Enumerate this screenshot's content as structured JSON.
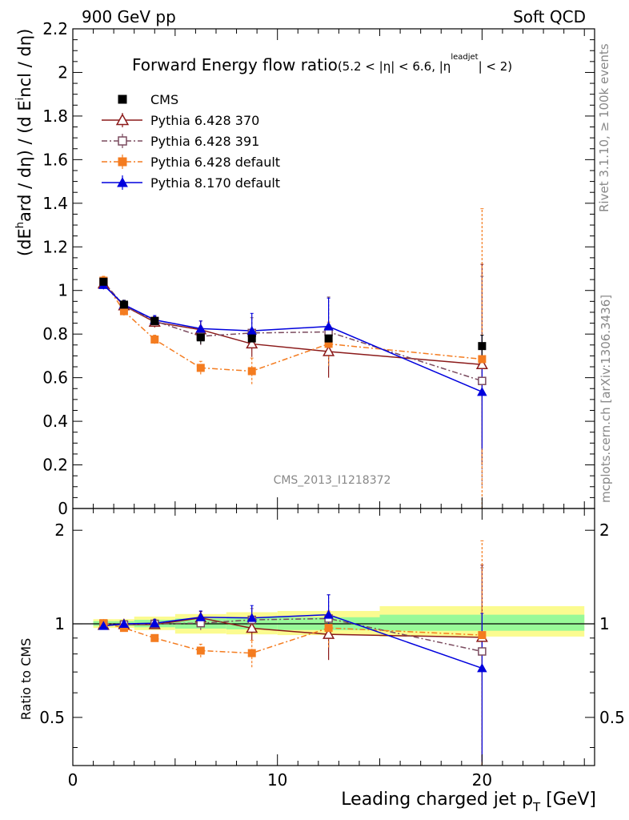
{
  "header": {
    "left": "900 GeV pp",
    "right": "Soft QCD"
  },
  "side_labels": {
    "rivet": "Rivet 3.1.10, ≥ 100k events",
    "mcplots": "mcplots.cern.ch [arXiv:1306.3436]"
  },
  "analysis_id": "CMS_2013_I1218372",
  "chart_data": [
    {
      "type": "scatter",
      "panel": "main",
      "title": "Forward Energy flow ratio",
      "title_suffix": "(5.2 < |η| < 6.6, |η",
      "title_sup": "leadjet",
      "title_end": "| < 2)",
      "ylabel": "(dE^hard / dη) / (d E^incl / dη)",
      "xlim": [
        0,
        25.5
      ],
      "ylim": [
        0,
        2.2
      ],
      "yticks": [
        "0",
        "0.2",
        "0.4",
        "0.6",
        "0.8",
        "1",
        "1.2",
        "1.4",
        "1.6",
        "1.8",
        "2",
        "2.2"
      ],
      "legend_position": "top-left",
      "series": [
        {
          "name": "CMS",
          "color": "#000000",
          "marker": "square-filled",
          "line": "none",
          "x": [
            1.5,
            2.5,
            4.0,
            6.25,
            8.75,
            12.5,
            20.0
          ],
          "y": [
            1.04,
            0.935,
            0.86,
            0.785,
            0.78,
            0.78,
            0.745
          ],
          "yerr": [
            0.02,
            0.02,
            0.02,
            0.03,
            0.03,
            0.04,
            0.05
          ]
        },
        {
          "name": "Pythia 6.428 370",
          "color": "#8b1a1a",
          "marker": "triangle-open",
          "line": "solid",
          "x": [
            1.5,
            2.5,
            4.0,
            6.25,
            8.75,
            12.5,
            20.0
          ],
          "y": [
            1.03,
            0.93,
            0.855,
            0.82,
            0.755,
            0.72,
            0.66
          ],
          "yerr": [
            0.02,
            0.02,
            0.025,
            0.04,
            0.06,
            0.12,
            0.46
          ]
        },
        {
          "name": "Pythia 6.428 391",
          "color": "#7a4a5e",
          "marker": "square-open",
          "line": "dashdot",
          "x": [
            1.5,
            2.5,
            4.0,
            6.25,
            8.75,
            12.5,
            20.0
          ],
          "y": [
            1.04,
            0.93,
            0.86,
            0.79,
            0.805,
            0.81,
            0.585
          ],
          "yerr": [
            0.02,
            0.02,
            0.025,
            0.04,
            0.07,
            0.16,
            0.48
          ]
        },
        {
          "name": "Pythia 6.428 default",
          "color": "#f47c20",
          "marker": "square-filled",
          "line": "dashdot",
          "x": [
            1.5,
            2.5,
            4.0,
            6.25,
            8.75,
            12.5,
            20.0
          ],
          "y": [
            1.045,
            0.905,
            0.775,
            0.645,
            0.63,
            0.755,
            0.685
          ],
          "yerr": [
            0.02,
            0.02,
            0.02,
            0.03,
            0.06,
            0.1,
            0.69
          ]
        },
        {
          "name": "Pythia 8.170 default",
          "color": "#0000dd",
          "marker": "triangle-filled",
          "line": "solid",
          "x": [
            1.5,
            2.5,
            4.0,
            6.25,
            8.75,
            12.5,
            20.0
          ],
          "y": [
            1.025,
            0.935,
            0.865,
            0.825,
            0.815,
            0.835,
            0.535
          ],
          "yerr": [
            0.02,
            0.02,
            0.02,
            0.035,
            0.08,
            0.13,
            0.26
          ]
        }
      ]
    },
    {
      "type": "scatter",
      "panel": "ratio",
      "ylabel": "Ratio to CMS",
      "xlabel": "Leading charged jet p_T [GeV]",
      "xlim": [
        0,
        25.5
      ],
      "ylim": [
        0.35,
        2.35
      ],
      "yscale": "log",
      "xticks": [
        "0",
        "10",
        "20"
      ],
      "yticks": [
        "0.5",
        "1",
        "2"
      ],
      "bands": {
        "edges": [
          1.0,
          2.0,
          3.0,
          5.0,
          7.5,
          10.0,
          15.0,
          25.0
        ],
        "inner": [
          [
            0.985,
            1.02
          ],
          [
            0.985,
            1.02
          ],
          [
            0.975,
            1.03
          ],
          [
            0.965,
            1.04
          ],
          [
            0.96,
            1.05
          ],
          [
            0.955,
            1.05
          ],
          [
            0.95,
            1.07
          ]
        ],
        "outer": [
          [
            0.97,
            1.035
          ],
          [
            0.97,
            1.035
          ],
          [
            0.955,
            1.055
          ],
          [
            0.93,
            1.075
          ],
          [
            0.925,
            1.09
          ],
          [
            0.92,
            1.1
          ],
          [
            0.91,
            1.14
          ]
        ],
        "inner_color": "#98f998",
        "outer_color": "#fbfb90"
      },
      "series": [
        {
          "name": "Pythia 6.428 370",
          "x": [
            1.5,
            2.5,
            4.0,
            6.25,
            8.75,
            12.5,
            20.0
          ],
          "y": [
            0.99,
            0.995,
            0.995,
            1.045,
            0.968,
            0.925,
            0.905
          ],
          "yerr": [
            0.02,
            0.02,
            0.03,
            0.05,
            0.08,
            0.16,
            0.64
          ]
        },
        {
          "name": "Pythia 6.428 391",
          "x": [
            1.5,
            2.5,
            4.0,
            6.25,
            8.75,
            12.5,
            20.0
          ],
          "y": [
            1.0,
            0.995,
            1.0,
            1.005,
            1.03,
            1.04,
            0.815
          ],
          "yerr": [
            0.02,
            0.02,
            0.03,
            0.05,
            0.09,
            0.2,
            0.7
          ]
        },
        {
          "name": "Pythia 6.428 default",
          "x": [
            1.5,
            2.5,
            4.0,
            6.25,
            8.75,
            12.5,
            20.0
          ],
          "y": [
            1.005,
            0.97,
            0.9,
            0.82,
            0.805,
            0.97,
            0.92
          ],
          "yerr": [
            0.02,
            0.02,
            0.02,
            0.04,
            0.08,
            0.13,
            0.93
          ]
        },
        {
          "name": "Pythia 8.170 default",
          "x": [
            1.5,
            2.5,
            4.0,
            6.25,
            8.75,
            12.5,
            20.0
          ],
          "y": [
            0.985,
            1.0,
            1.005,
            1.05,
            1.045,
            1.07,
            0.72
          ],
          "yerr": [
            0.02,
            0.02,
            0.03,
            0.05,
            0.1,
            0.17,
            0.36
          ]
        }
      ]
    }
  ]
}
